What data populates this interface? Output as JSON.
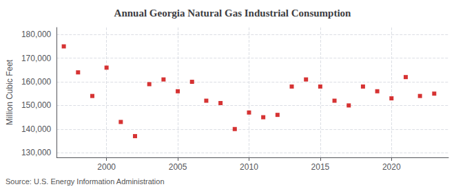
{
  "chart_data": {
    "type": "scatter",
    "title": "Annual Georgia Natural Gas Industrial Consumption",
    "ylabel": "Million Cubic Feet",
    "source": "Source: U.S. Energy Information Administration",
    "x": [
      1997,
      1998,
      1999,
      2000,
      2001,
      2002,
      2003,
      2004,
      2005,
      2006,
      2007,
      2008,
      2009,
      2010,
      2011,
      2012,
      2013,
      2014,
      2015,
      2016,
      2017,
      2018,
      2019,
      2020,
      2021,
      2022,
      2023
    ],
    "values": [
      175000,
      164000,
      154000,
      166000,
      143000,
      137000,
      159000,
      161000,
      156000,
      160000,
      152000,
      151000,
      140000,
      147000,
      145000,
      146000,
      158000,
      161000,
      158000,
      152000,
      150000,
      158000,
      156000,
      153000,
      162000,
      154000,
      155000
    ],
    "color": "#cc0000",
    "marker": "square",
    "xlim": [
      1996.5,
      2024
    ],
    "xticks": [
      2000,
      2005,
      2010,
      2015,
      2020
    ],
    "ylim": [
      128000,
      183000
    ],
    "yticks": [
      {
        "value": 130000,
        "label": "130,000"
      },
      {
        "value": 140000,
        "label": "140,000"
      },
      {
        "value": 150000,
        "label": "150,000"
      },
      {
        "value": 160000,
        "label": "160,000"
      },
      {
        "value": 170000,
        "label": "170,000"
      },
      {
        "value": 180000,
        "label": "180,000"
      }
    ],
    "grid": true
  }
}
